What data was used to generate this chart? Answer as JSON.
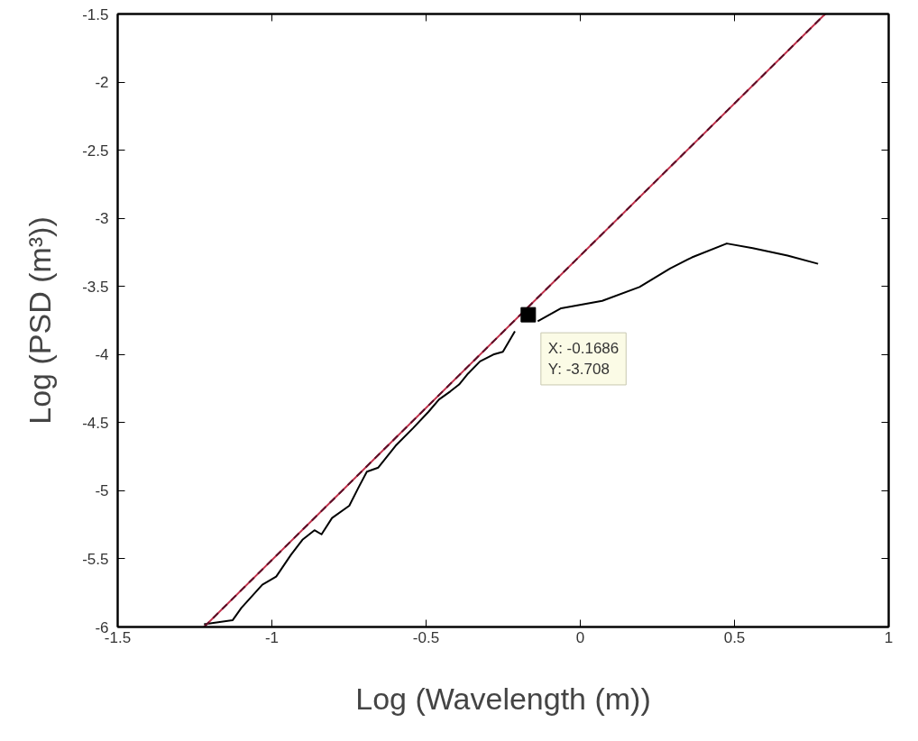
{
  "chart_data": {
    "type": "line",
    "xlabel": "Log (Wavelength (m))",
    "ylabel": "Log (PSD (m³))",
    "xlim": [
      -1.5,
      1
    ],
    "ylim": [
      -6,
      -1.5
    ],
    "xticks": [
      -1.5,
      -1,
      -0.5,
      0,
      0.5,
      1
    ],
    "yticks": [
      -6,
      -5.5,
      -5,
      -4.5,
      -4,
      -3.5,
      -3,
      -2.5,
      -2,
      -1.5
    ],
    "grid": false,
    "series": [
      {
        "color": "#000000",
        "line_style": "solid",
        "x": [
          -1.22,
          -1.127,
          -1.099,
          -1.031,
          -0.986,
          -0.938,
          -0.901,
          -0.862,
          -0.839,
          -0.805,
          -0.749,
          -0.72,
          -0.692,
          -0.655,
          -0.599,
          -0.542,
          -0.492,
          -0.458,
          -0.421,
          -0.393,
          -0.364,
          -0.325,
          -0.282,
          -0.251,
          -0.212
        ],
        "values": [
          -5.98,
          -5.95,
          -5.86,
          -5.69,
          -5.63,
          -5.47,
          -5.36,
          -5.29,
          -5.32,
          -5.2,
          -5.11,
          -4.98,
          -4.86,
          -4.83,
          -4.67,
          -4.54,
          -4.42,
          -4.33,
          -4.27,
          -4.22,
          -4.14,
          -4.05,
          -4.0,
          -3.98,
          -3.83
        ]
      },
      {
        "color": "#000000",
        "line_style": "solid",
        "x": [
          -0.138,
          -0.062,
          0.071,
          0.192,
          0.291,
          0.362,
          0.475,
          0.559,
          0.672,
          0.771
        ],
        "values": [
          -3.755,
          -3.66,
          -3.606,
          -3.504,
          -3.368,
          -3.287,
          -3.185,
          -3.219,
          -3.273,
          -3.334
        ]
      },
      {
        "color": "#c0304a",
        "line_style": "solid",
        "x": [
          -1.22,
          0.794
        ],
        "values": [
          -6,
          -1.5
        ]
      },
      {
        "color": "#5a1028",
        "line_style": "dashed",
        "x": [
          -1.22,
          0.794
        ],
        "values": [
          -6,
          -1.5
        ]
      },
      {
        "type": "scatter",
        "marker": "square",
        "color": "#000000",
        "x": [
          -0.1686
        ],
        "values": [
          -3.708
        ]
      }
    ],
    "annotations": [
      {
        "text": "X: -0.1686\nY: -3.708",
        "x": -0.1686,
        "y": -3.708
      }
    ]
  }
}
